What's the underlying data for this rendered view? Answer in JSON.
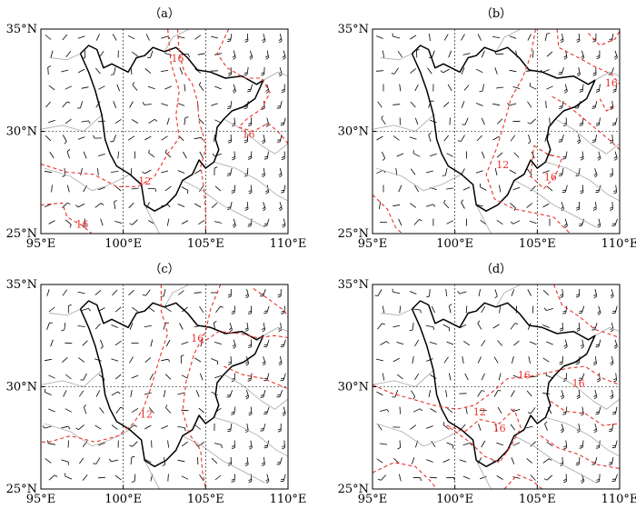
{
  "panels": [
    {
      "id": "a",
      "label": "（a）",
      "contour_labels": [
        {
          "text": "16",
          "lon": 103.3,
          "lat": 33.4
        },
        {
          "text": "16",
          "lon": 107.6,
          "lat": 29.7
        },
        {
          "text": "12",
          "lon": 101.3,
          "lat": 27.4
        },
        {
          "text": "16",
          "lon": 97.5,
          "lat": 25.3
        }
      ]
    },
    {
      "id": "b",
      "label": "（b）",
      "contour_labels": [
        {
          "text": "16",
          "lon": 109.5,
          "lat": 32.2
        },
        {
          "text": "12",
          "lon": 102.9,
          "lat": 28.2
        },
        {
          "text": "16",
          "lon": 105.8,
          "lat": 27.6
        }
      ]
    },
    {
      "id": "c",
      "label": "（c）",
      "contour_labels": [
        {
          "text": "16",
          "lon": 104.5,
          "lat": 32.2
        },
        {
          "text": "12",
          "lon": 101.4,
          "lat": 28.5
        }
      ]
    },
    {
      "id": "d",
      "label": "（d）",
      "contour_labels": [
        {
          "text": "16",
          "lon": 104.2,
          "lat": 30.4
        },
        {
          "text": "16",
          "lon": 107.5,
          "lat": 30.0
        },
        {
          "text": "12",
          "lon": 101.5,
          "lat": 28.6
        },
        {
          "text": "16",
          "lon": 102.7,
          "lat": 27.8
        }
      ]
    }
  ],
  "axes": {
    "lon_ticks": [
      "95°E",
      "100°E",
      "105°E",
      "110°E"
    ],
    "lat_ticks": [
      "25°N",
      "30°N",
      "35°N"
    ],
    "lon_range": [
      95,
      110
    ],
    "lat_range": [
      25,
      35
    ]
  },
  "style": {
    "contour_color": "#e8322c",
    "province_color": "#000000",
    "boundary_color": "#b0b0b0",
    "barb_color": "#000000"
  }
}
